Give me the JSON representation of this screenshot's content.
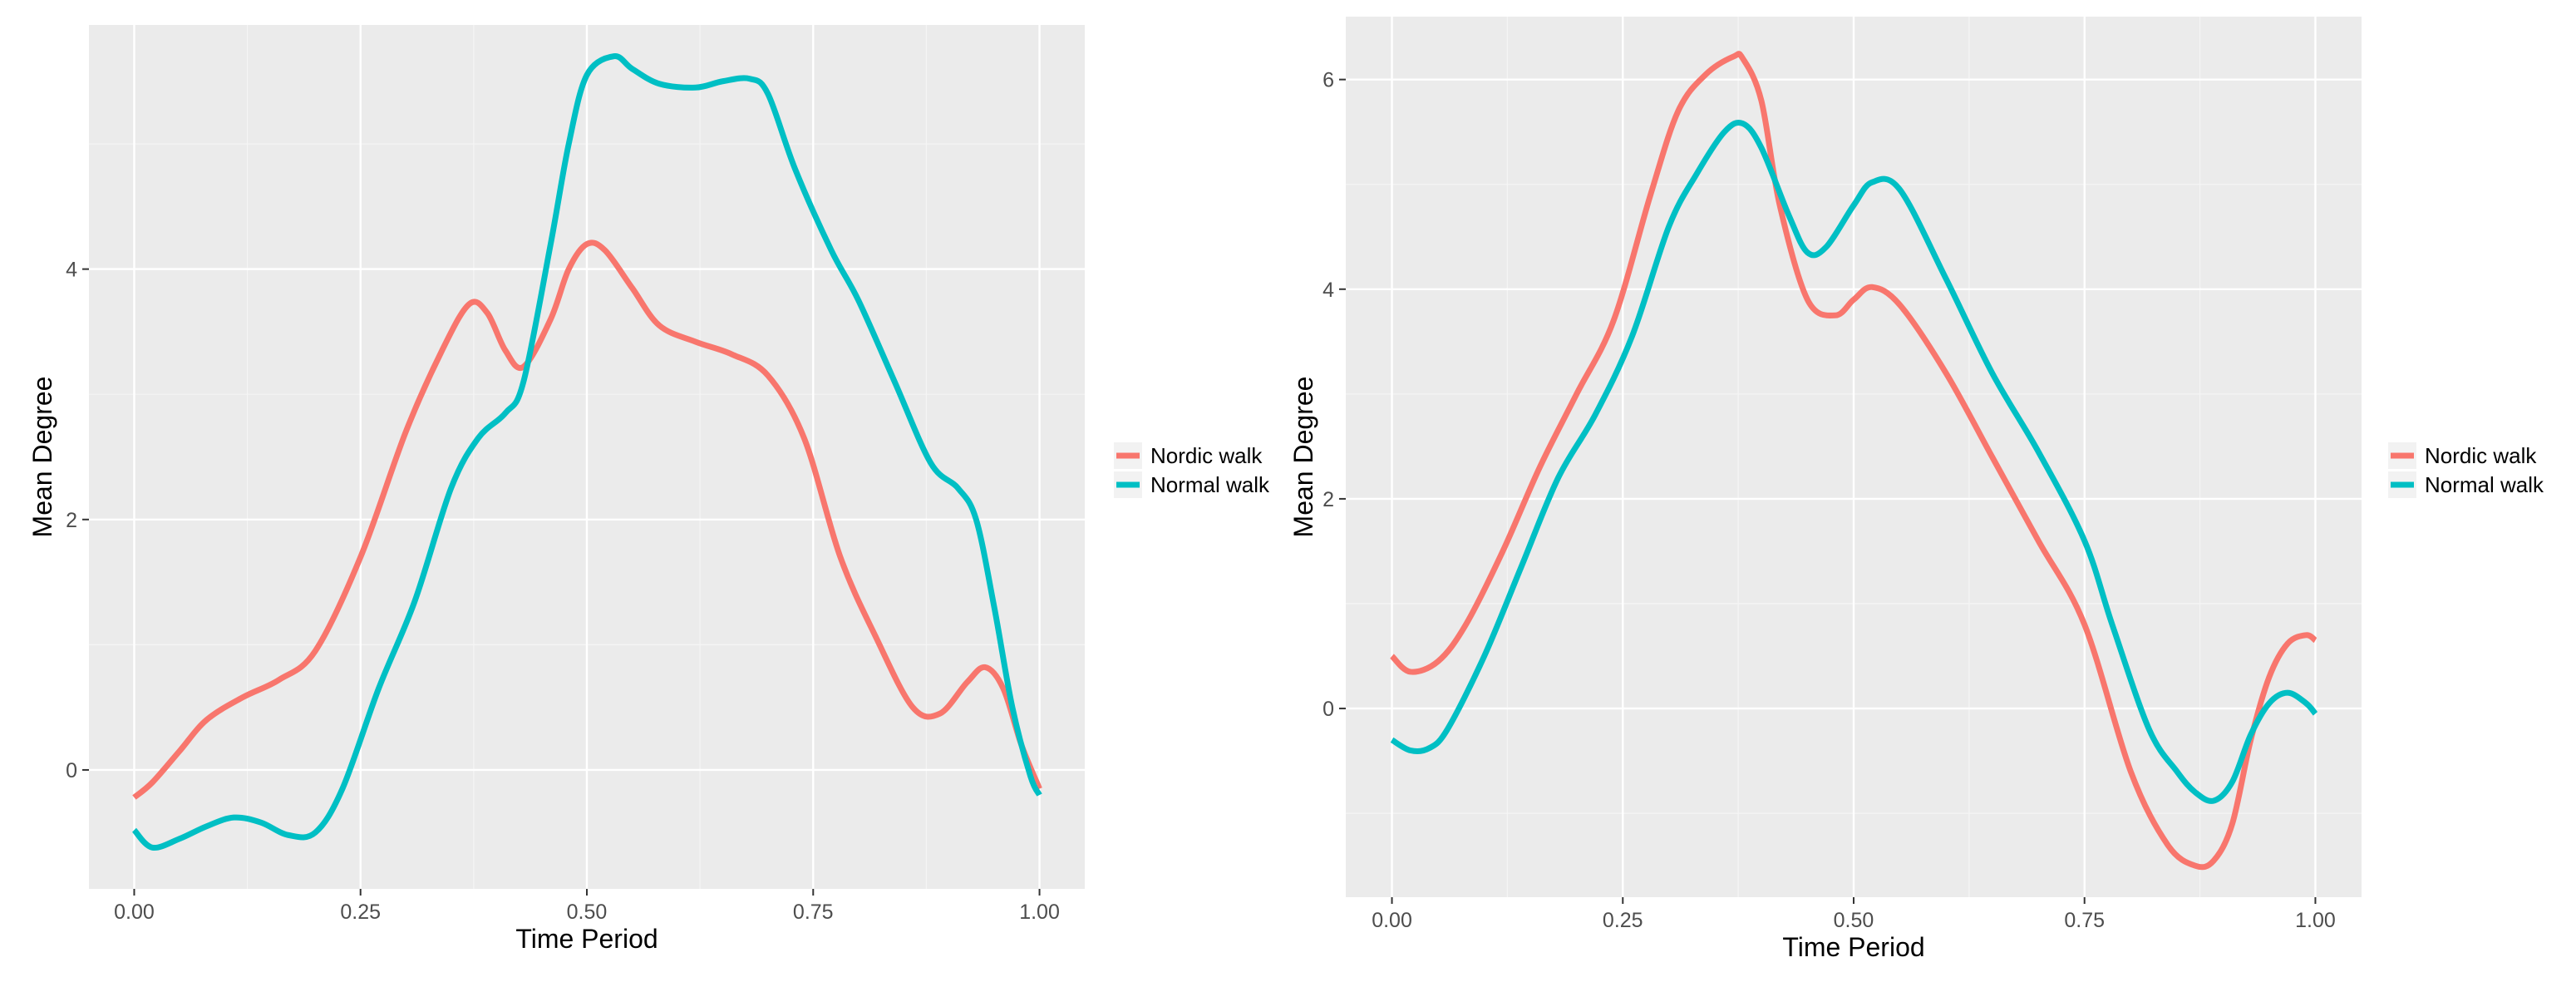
{
  "chart_data": [
    {
      "type": "line",
      "title": "",
      "xlabel": "Time Period",
      "ylabel": "Mean Degree",
      "xlim": [
        -0.05,
        1.05
      ],
      "ylim": [
        -0.95,
        5.95
      ],
      "x_ticks": [
        0,
        0.25,
        0.5,
        0.75,
        1
      ],
      "x_tick_labels": [
        "0.00",
        "0.25",
        "0.50",
        "0.75",
        "1.00"
      ],
      "y_ticks": [
        0,
        2,
        4
      ],
      "y_tick_labels": [
        "0",
        "2",
        "4"
      ],
      "grid": true,
      "legend_position": "right",
      "series": [
        {
          "name": "Nordic walk",
          "color": "#F8766D",
          "x": [
            0.0,
            0.02,
            0.05,
            0.08,
            0.12,
            0.16,
            0.2,
            0.25,
            0.3,
            0.34,
            0.37,
            0.39,
            0.41,
            0.43,
            0.46,
            0.48,
            0.5,
            0.52,
            0.55,
            0.58,
            0.62,
            0.66,
            0.7,
            0.74,
            0.78,
            0.82,
            0.86,
            0.89,
            0.92,
            0.94,
            0.96,
            0.98,
            1.0
          ],
          "values": [
            -0.22,
            -0.1,
            0.15,
            0.4,
            0.58,
            0.72,
            0.95,
            1.7,
            2.7,
            3.35,
            3.72,
            3.65,
            3.35,
            3.22,
            3.6,
            4.0,
            4.2,
            4.15,
            3.85,
            3.55,
            3.42,
            3.32,
            3.15,
            2.65,
            1.7,
            1.05,
            0.5,
            0.45,
            0.7,
            0.82,
            0.65,
            0.2,
            -0.15
          ]
        },
        {
          "name": "Normal walk",
          "color": "#00BFC4",
          "x": [
            0.0,
            0.02,
            0.05,
            0.08,
            0.11,
            0.14,
            0.17,
            0.2,
            0.23,
            0.27,
            0.31,
            0.35,
            0.38,
            0.41,
            0.43,
            0.46,
            0.48,
            0.5,
            0.53,
            0.55,
            0.58,
            0.62,
            0.65,
            0.68,
            0.7,
            0.73,
            0.77,
            0.8,
            0.84,
            0.88,
            0.91,
            0.93,
            0.95,
            0.97,
            0.99,
            1.0
          ],
          "values": [
            -0.48,
            -0.62,
            -0.55,
            -0.45,
            -0.38,
            -0.42,
            -0.52,
            -0.5,
            -0.15,
            0.65,
            1.35,
            2.25,
            2.65,
            2.85,
            3.1,
            4.2,
            5.0,
            5.55,
            5.7,
            5.6,
            5.48,
            5.45,
            5.5,
            5.52,
            5.4,
            4.8,
            4.15,
            3.75,
            3.1,
            2.45,
            2.25,
            2.0,
            1.3,
            0.5,
            -0.05,
            -0.2
          ]
        }
      ]
    },
    {
      "type": "line",
      "title": "",
      "xlabel": "Time Period",
      "ylabel": "Mean Degree",
      "xlim": [
        -0.05,
        1.05
      ],
      "ylim": [
        -1.8,
        6.6
      ],
      "x_ticks": [
        0,
        0.25,
        0.5,
        0.75,
        1
      ],
      "x_tick_labels": [
        "0.00",
        "0.25",
        "0.50",
        "0.75",
        "1.00"
      ],
      "y_ticks": [
        0,
        2,
        4,
        6
      ],
      "y_tick_labels": [
        "0",
        "2",
        "4",
        "6"
      ],
      "grid": true,
      "legend_position": "right",
      "series": [
        {
          "name": "Nordic walk",
          "color": "#F8766D",
          "x": [
            0.0,
            0.02,
            0.05,
            0.08,
            0.12,
            0.16,
            0.2,
            0.24,
            0.28,
            0.31,
            0.34,
            0.37,
            0.38,
            0.4,
            0.42,
            0.45,
            0.48,
            0.5,
            0.52,
            0.55,
            0.6,
            0.65,
            0.7,
            0.75,
            0.8,
            0.84,
            0.87,
            0.89,
            0.91,
            0.93,
            0.95,
            0.97,
            0.99,
            1.0
          ],
          "values": [
            0.5,
            0.35,
            0.45,
            0.8,
            1.5,
            2.3,
            3.0,
            3.7,
            4.9,
            5.7,
            6.05,
            6.22,
            6.2,
            5.8,
            4.8,
            3.9,
            3.75,
            3.9,
            4.02,
            3.85,
            3.2,
            2.4,
            1.6,
            0.8,
            -0.6,
            -1.3,
            -1.5,
            -1.45,
            -1.1,
            -0.3,
            0.3,
            0.62,
            0.7,
            0.65
          ]
        },
        {
          "name": "Normal walk",
          "color": "#00BFC4",
          "x": [
            0.0,
            0.02,
            0.04,
            0.06,
            0.1,
            0.14,
            0.18,
            0.22,
            0.26,
            0.3,
            0.33,
            0.36,
            0.38,
            0.4,
            0.43,
            0.45,
            0.47,
            0.5,
            0.52,
            0.55,
            0.6,
            0.65,
            0.7,
            0.75,
            0.78,
            0.82,
            0.85,
            0.87,
            0.89,
            0.91,
            0.93,
            0.95,
            0.97,
            0.99,
            1.0
          ],
          "values": [
            -0.3,
            -0.4,
            -0.38,
            -0.2,
            0.5,
            1.35,
            2.2,
            2.8,
            3.55,
            4.6,
            5.1,
            5.5,
            5.58,
            5.35,
            4.7,
            4.35,
            4.4,
            4.8,
            5.02,
            4.95,
            4.1,
            3.2,
            2.45,
            1.6,
            0.8,
            -0.2,
            -0.6,
            -0.8,
            -0.88,
            -0.7,
            -0.25,
            0.05,
            0.15,
            0.05,
            -0.05
          ]
        }
      ]
    }
  ]
}
